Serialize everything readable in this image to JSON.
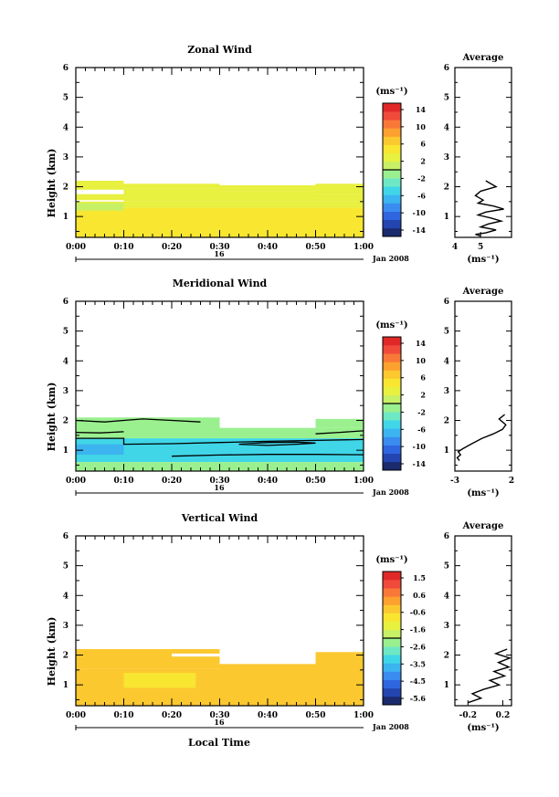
{
  "chart_data": [
    {
      "type": "heatmap",
      "title": "Zonal Wind",
      "ylabel": "Height (km)",
      "xlabel": "",
      "x_ticks": [
        "0:00",
        "0:10",
        "0:20",
        "0:30",
        "0:40",
        "0:50",
        "1:00"
      ],
      "y_ticks": [
        "1",
        "2",
        "3",
        "4",
        "5",
        "6"
      ],
      "ylim": [
        0.3,
        6
      ],
      "xlim": [
        0,
        60
      ],
      "date_day": "16",
      "date_month": "Jan 2008",
      "colorbar": {
        "unit": "(ms⁻¹)",
        "ticks": [
          "14",
          "10",
          "6",
          "2",
          "-2",
          "-6",
          "-10",
          "-14"
        ],
        "vmin": -16,
        "vmax": 16
      },
      "blocks": [
        {
          "t0": 0,
          "t1": 10,
          "h0": 1.9,
          "h1": 2.2,
          "v": 3.6
        },
        {
          "t0": 10,
          "t1": 30,
          "h0": 1.95,
          "h1": 2.1,
          "v": 3.6
        },
        {
          "t0": 30,
          "t1": 50,
          "h0": 1.85,
          "h1": 2.05,
          "v": 3.6
        },
        {
          "t0": 50,
          "t1": 60,
          "h0": 1.75,
          "h1": 2.1,
          "v": 3.6
        },
        {
          "t0": 0,
          "t1": 10,
          "h0": 1.55,
          "h1": 1.75,
          "v": 3.6
        },
        {
          "t0": 10,
          "t1": 30,
          "h0": 1.5,
          "h1": 1.95,
          "v": 3.6
        },
        {
          "t0": 30,
          "t1": 50,
          "h0": 1.5,
          "h1": 1.85,
          "v": 3.6
        },
        {
          "t0": 50,
          "t1": 60,
          "h0": 1.5,
          "h1": 1.75,
          "v": 3.6
        },
        {
          "t0": 0,
          "t1": 60,
          "h0": 1.3,
          "h1": 1.5,
          "v": 3.6
        },
        {
          "t0": 0,
          "t1": 60,
          "h0": 0.3,
          "h1": 1.3,
          "v": 5.2
        },
        {
          "t0": 0,
          "t1": 10,
          "h0": 1.2,
          "h1": 1.45,
          "v": 1.2
        },
        {
          "t0": 40,
          "t1": 60,
          "h0": 0.75,
          "h1": 0.9,
          "v": 4.0
        }
      ],
      "average": {
        "title": "Average",
        "unit": "(ms⁻¹)",
        "x_ticks": [
          "4",
          "5"
        ],
        "xlim": [
          4,
          6.2
        ],
        "x": [
          5.2,
          5.6,
          5.0,
          4.8,
          5.1,
          4.9,
          5.5,
          5.9,
          5.2,
          4.9,
          5.4,
          5.8,
          5.3,
          5.0,
          5.6,
          5.2,
          4.8,
          5.0
        ],
        "y": [
          2.2,
          2.0,
          1.85,
          1.7,
          1.55,
          1.45,
          1.35,
          1.25,
          1.15,
          1.05,
          0.95,
          0.85,
          0.75,
          0.65,
          0.55,
          0.45,
          0.4,
          0.35
        ]
      }
    },
    {
      "type": "heatmap",
      "title": "Meridional Wind",
      "ylabel": "Height (km)",
      "xlabel": "",
      "x_ticks": [
        "0:00",
        "0:10",
        "0:20",
        "0:30",
        "0:40",
        "0:50",
        "1:00"
      ],
      "y_ticks": [
        "1",
        "2",
        "3",
        "4",
        "5",
        "6"
      ],
      "ylim": [
        0.3,
        6
      ],
      "xlim": [
        0,
        60
      ],
      "date_day": "16",
      "date_month": "Jan 2008",
      "colorbar": {
        "unit": "(ms⁻¹)",
        "ticks": [
          "14",
          "10",
          "6",
          "2",
          "-2",
          "-6",
          "-10",
          "-14"
        ],
        "vmin": -16,
        "vmax": 16
      },
      "blocks": [
        {
          "t0": 0,
          "t1": 30,
          "h0": 1.4,
          "h1": 2.1,
          "v": -1.5
        },
        {
          "t0": 30,
          "t1": 60,
          "h0": 1.4,
          "h1": 1.75,
          "v": -1.5
        },
        {
          "t0": 50,
          "t1": 60,
          "h0": 1.75,
          "h1": 2.05,
          "v": -1.5
        },
        {
          "t0": 0,
          "t1": 60,
          "h0": 0.6,
          "h1": 1.4,
          "v": -4.5
        },
        {
          "t0": 0,
          "t1": 10,
          "h0": 0.85,
          "h1": 1.2,
          "v": -6.5
        },
        {
          "t0": 10,
          "t1": 60,
          "h0": 0.9,
          "h1": 1.3,
          "v": -5.5
        },
        {
          "t0": 0,
          "t1": 60,
          "h0": 0.3,
          "h1": 0.6,
          "v": -1.5
        }
      ],
      "contours": [
        {
          "x": [
            0,
            6,
            10,
            14,
            20,
            26
          ],
          "h": [
            2.0,
            1.95,
            2.0,
            2.05,
            2.0,
            1.95
          ]
        },
        {
          "x": [
            0,
            5,
            10
          ],
          "h": [
            1.6,
            1.58,
            1.62
          ]
        },
        {
          "x": [
            0,
            10,
            10,
            20,
            30,
            40,
            50,
            60
          ],
          "h": [
            1.4,
            1.4,
            1.2,
            1.22,
            1.26,
            1.3,
            1.33,
            1.36
          ]
        },
        {
          "x": [
            34,
            40,
            46,
            50,
            46,
            40,
            34
          ],
          "h": [
            1.2,
            1.16,
            1.2,
            1.24,
            1.27,
            1.26,
            1.2
          ]
        },
        {
          "x": [
            20,
            30,
            40,
            50,
            60
          ],
          "h": [
            0.8,
            0.84,
            0.86,
            0.86,
            0.85
          ]
        },
        {
          "x": [
            50,
            55,
            60
          ],
          "h": [
            1.55,
            1.6,
            1.65
          ]
        }
      ],
      "average": {
        "title": "Average",
        "unit": "(ms⁻¹)",
        "x_ticks": [
          "-3",
          "2"
        ],
        "xlim": [
          -3,
          2
        ],
        "x": [
          1.4,
          0.9,
          1.5,
          1.2,
          0.4,
          -0.6,
          -1.6,
          -2.3,
          -2.7,
          -2.5,
          -2.8,
          -2.6
        ],
        "y": [
          2.2,
          2.05,
          1.85,
          1.7,
          1.55,
          1.4,
          1.2,
          1.05,
          0.95,
          0.85,
          0.75,
          0.65
        ]
      }
    },
    {
      "type": "heatmap",
      "title": "Vertical Wind",
      "ylabel": "Height (km)",
      "xlabel": "Local Time",
      "x_ticks": [
        "0:00",
        "0:10",
        "0:20",
        "0:30",
        "0:40",
        "0:50",
        "1:00"
      ],
      "y_ticks": [
        "1",
        "2",
        "3",
        "4",
        "5",
        "6"
      ],
      "ylim": [
        0.3,
        6
      ],
      "xlim": [
        0,
        60
      ],
      "date_day": "16",
      "date_month": "Jan 2008",
      "colorbar": {
        "unit": "(ms⁻¹)",
        "ticks": [
          "1.5",
          "0.6",
          "-0.6",
          "-1.6",
          "-2.6",
          "-3.5",
          "-4.5",
          "-5.6"
        ],
        "vmin": -6.5,
        "vmax": 2.5
      },
      "blocks": [
        {
          "t0": 0,
          "t1": 20,
          "h0": 1.55,
          "h1": 2.2,
          "v": 0.2
        },
        {
          "t0": 20,
          "t1": 30,
          "h0": 1.55,
          "h1": 1.95,
          "v": 0.2
        },
        {
          "t0": 20,
          "t1": 30,
          "h0": 2.05,
          "h1": 2.2,
          "v": 0.2
        },
        {
          "t0": 30,
          "t1": 50,
          "h0": 0.3,
          "h1": 1.7,
          "v": 0.2
        },
        {
          "t0": 50,
          "t1": 60,
          "h0": 0.3,
          "h1": 2.1,
          "v": 0.2
        },
        {
          "t0": 0,
          "t1": 30,
          "h0": 0.3,
          "h1": 1.55,
          "v": 0.2
        },
        {
          "t0": 0,
          "t1": 10,
          "h0": 1.0,
          "h1": 1.45,
          "v": -0.3
        },
        {
          "t0": 10,
          "t1": 25,
          "h0": 0.9,
          "h1": 1.4,
          "v": -0.4
        },
        {
          "t0": 0,
          "t1": 10,
          "h0": 0.45,
          "h1": 0.6,
          "v": -0.3
        }
      ],
      "average": {
        "title": "Average",
        "unit": "(ms⁻¹)",
        "x_ticks": [
          "-0.2",
          "0.2"
        ],
        "xlim": [
          -0.35,
          0.3
        ],
        "x": [
          0.25,
          0.12,
          0.28,
          0.15,
          0.27,
          0.1,
          0.22,
          0.05,
          0.16,
          -0.02,
          -0.15,
          -0.05,
          -0.2
        ],
        "y": [
          2.2,
          2.05,
          1.9,
          1.75,
          1.6,
          1.45,
          1.3,
          1.15,
          1.0,
          0.85,
          0.7,
          0.55,
          0.4
        ]
      }
    }
  ]
}
